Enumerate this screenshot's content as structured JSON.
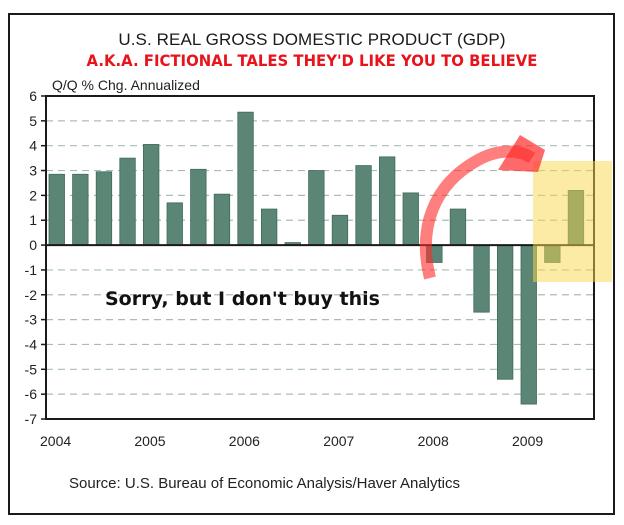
{
  "chart_data": {
    "type": "bar",
    "title": "U.S. REAL GROSS DOMESTIC PRODUCT (GDP)",
    "subtitle": "A.K.A. FICTIONAL TALES THEY'D LIKE YOU TO BELIEVE",
    "ylabel": "Q/Q % Chg. Annualized",
    "xlabel": "",
    "source": "Source: U.S. Bureau of Economic Analysis/Haver Analytics",
    "annotation": "Sorry, but I don't buy this",
    "ylim": [
      -7,
      6
    ],
    "yticks": [
      6,
      5,
      4,
      3,
      2,
      1,
      0,
      -1,
      -2,
      -3,
      -4,
      -5,
      -6,
      -7
    ],
    "xtick_labels": [
      "2004",
      "2005",
      "2006",
      "2007",
      "2008",
      "2009"
    ],
    "grid": true,
    "categories": [
      "2004Q1",
      "2004Q2",
      "2004Q3",
      "2004Q4",
      "2005Q1",
      "2005Q2",
      "2005Q3",
      "2005Q4",
      "2006Q1",
      "2006Q2",
      "2006Q3",
      "2006Q4",
      "2007Q1",
      "2007Q2",
      "2007Q3",
      "2007Q4",
      "2008Q1",
      "2008Q2",
      "2008Q3",
      "2008Q4",
      "2009Q1",
      "2009Q2",
      "2009Q3"
    ],
    "values": [
      2.85,
      2.85,
      2.95,
      3.5,
      4.05,
      1.7,
      3.05,
      2.05,
      5.35,
      1.45,
      0.1,
      3.0,
      1.2,
      3.2,
      3.55,
      2.1,
      -0.7,
      1.45,
      -2.7,
      -5.4,
      -6.4,
      -0.7,
      2.2
    ],
    "highlighted_categories": [
      "2009Q2",
      "2009Q3"
    ],
    "colors": {
      "bar": "#5b8575",
      "bar_edge": "#3f6b5a",
      "grid": "#a9bdb6",
      "highlight": "#f8d84a",
      "arrow": "#ff2a2a",
      "subtitle": "#e8141c"
    }
  }
}
